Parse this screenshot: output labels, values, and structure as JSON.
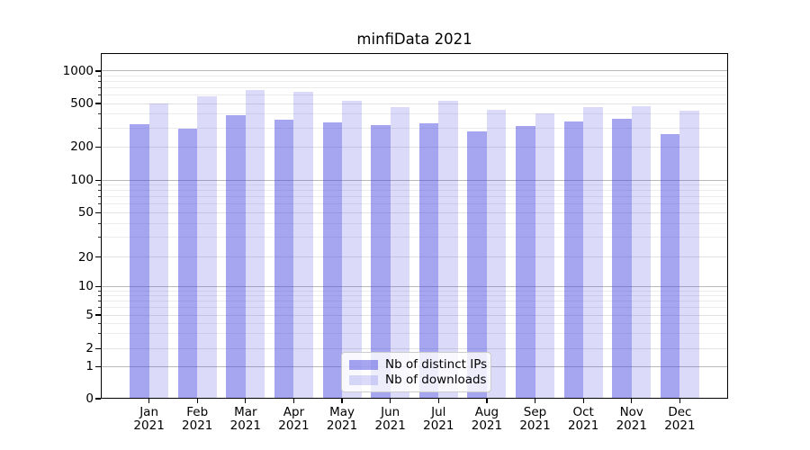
{
  "title": "minfiData 2021",
  "y_axis": {
    "tick_labels": [
      "0",
      "1",
      "2",
      "5",
      "10",
      "20",
      "50",
      "100",
      "200",
      "500",
      "1000"
    ]
  },
  "x_axis": {
    "months": [
      "Jan",
      "Feb",
      "Mar",
      "Apr",
      "May",
      "Jun",
      "Jul",
      "Aug",
      "Sep",
      "Oct",
      "Nov",
      "Dec"
    ],
    "year": "2021"
  },
  "legend": {
    "items": [
      {
        "label": "Nb of distinct IPs",
        "series": "ips"
      },
      {
        "label": "Nb of downloads",
        "series": "downloads"
      }
    ]
  },
  "colors": {
    "ips_bar_solid": "#a5a5f0",
    "downloads_bar_solid": "#d8d8f8",
    "ips_bar_rgba": "rgba(64,64,224,0.47)",
    "downloads_bar_rgba": "rgba(64,64,224,0.19)",
    "grid_major": "#b9b9b9",
    "grid_minor": "#ececec",
    "spine": "#000000"
  },
  "chart_data": {
    "type": "bar",
    "title": "minfiData 2021",
    "categories": [
      "Jan 2021",
      "Feb 2021",
      "Mar 2021",
      "Apr 2021",
      "May 2021",
      "Jun 2021",
      "Jul 2021",
      "Aug 2021",
      "Sep 2021",
      "Oct 2021",
      "Nov 2021",
      "Dec 2021"
    ],
    "series": [
      {
        "name": "Nb of distinct IPs",
        "color": "#a5a5f0",
        "values": [
          325,
          295,
          395,
          355,
          335,
          320,
          330,
          280,
          310,
          340,
          360,
          265
        ]
      },
      {
        "name": "Nb of downloads",
        "color": "#d8d8f8",
        "values": [
          500,
          580,
          670,
          640,
          530,
          460,
          530,
          440,
          410,
          460,
          470,
          430
        ]
      }
    ],
    "xlabel": "",
    "ylabel": "",
    "yscale": "symlog",
    "yticks": [
      0,
      1,
      2,
      5,
      10,
      20,
      50,
      100,
      200,
      500,
      1000
    ],
    "ylim": [
      0,
      1400
    ],
    "grid": true,
    "grid_which": "both",
    "legend_position": "lower center"
  }
}
